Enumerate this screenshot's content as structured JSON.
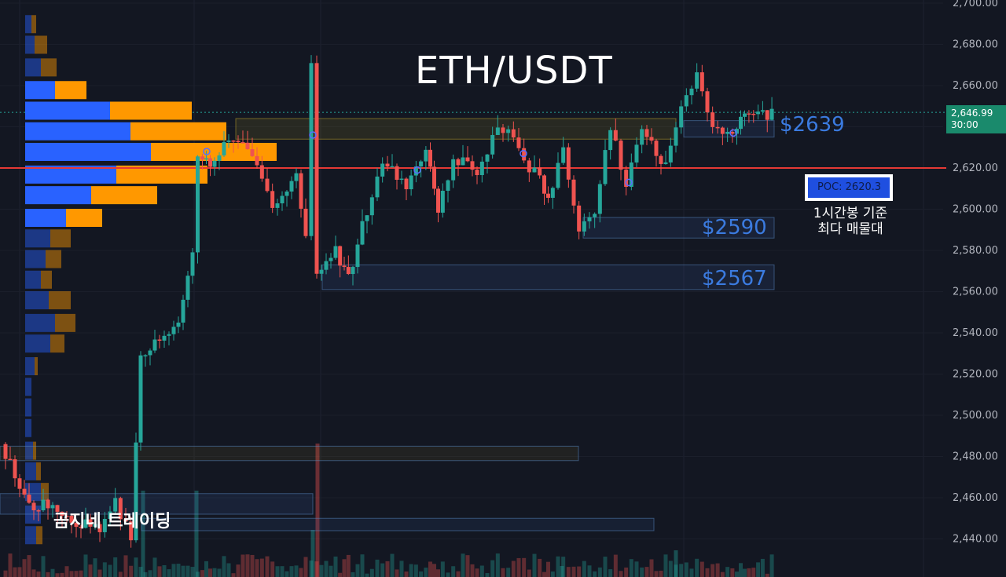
{
  "chart_data": {
    "type": "candlestick",
    "title": "ETH/USDT",
    "y_axis_ticks": [
      "2,700.00",
      "2,680.00",
      "2,660.00",
      "2,640.00",
      "2,620.00",
      "2,600.00",
      "2,580.00",
      "2,560.00",
      "2,540.00",
      "2,520.00",
      "2,500.00",
      "2,480.00",
      "2,460.00",
      "2,440.00"
    ],
    "ylim": [
      2432,
      2700
    ],
    "current_price": "2,646.99",
    "current_countdown": "30:00",
    "poc_line": 2620,
    "poc_label": "POC: 2620.3",
    "poc_note": [
      "1시간봉 기준",
      "최다 매물대"
    ],
    "zones": [
      {
        "label": "$2639",
        "value": 2639
      },
      {
        "label": "$2590",
        "value": 2590
      },
      {
        "label": "$2567",
        "value": 2567
      }
    ],
    "watermark": "곰지네 트레이딩",
    "colors": {
      "up": "#26a69a",
      "down": "#ef5350",
      "poc": "#e53935",
      "zone_label": "#3b7be0",
      "profile_buy": "#2962ff",
      "profile_sell": "#ff9800"
    }
  }
}
